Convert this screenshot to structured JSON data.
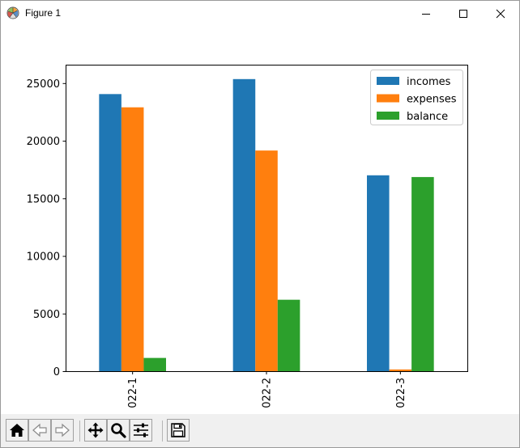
{
  "window": {
    "title": "Figure 1"
  },
  "chart_data": {
    "type": "bar",
    "categories": [
      "022-1",
      "022-2",
      "022-3"
    ],
    "series": [
      {
        "name": "incomes",
        "values": [
          24050,
          25350,
          17000
        ],
        "color": "#1f77b4"
      },
      {
        "name": "expenses",
        "values": [
          22900,
          19150,
          150
        ],
        "color": "#ff7f0e"
      },
      {
        "name": "balance",
        "values": [
          1150,
          6200,
          16850
        ],
        "color": "#2ca02c"
      }
    ],
    "title": "",
    "xlabel": "",
    "ylabel": "",
    "ylim": [
      0,
      26600
    ],
    "yticks": [
      0,
      5000,
      10000,
      15000,
      20000,
      25000
    ],
    "grid": false,
    "legend_position": "top-right",
    "xtick_rotation": 90
  },
  "toolbar": {
    "tools": [
      {
        "name": "home-icon"
      },
      {
        "name": "back-icon"
      },
      {
        "name": "forward-icon"
      },
      {
        "name": "pan-icon"
      },
      {
        "name": "zoom-icon"
      },
      {
        "name": "configure-subplots-icon"
      },
      {
        "name": "save-icon"
      }
    ]
  }
}
